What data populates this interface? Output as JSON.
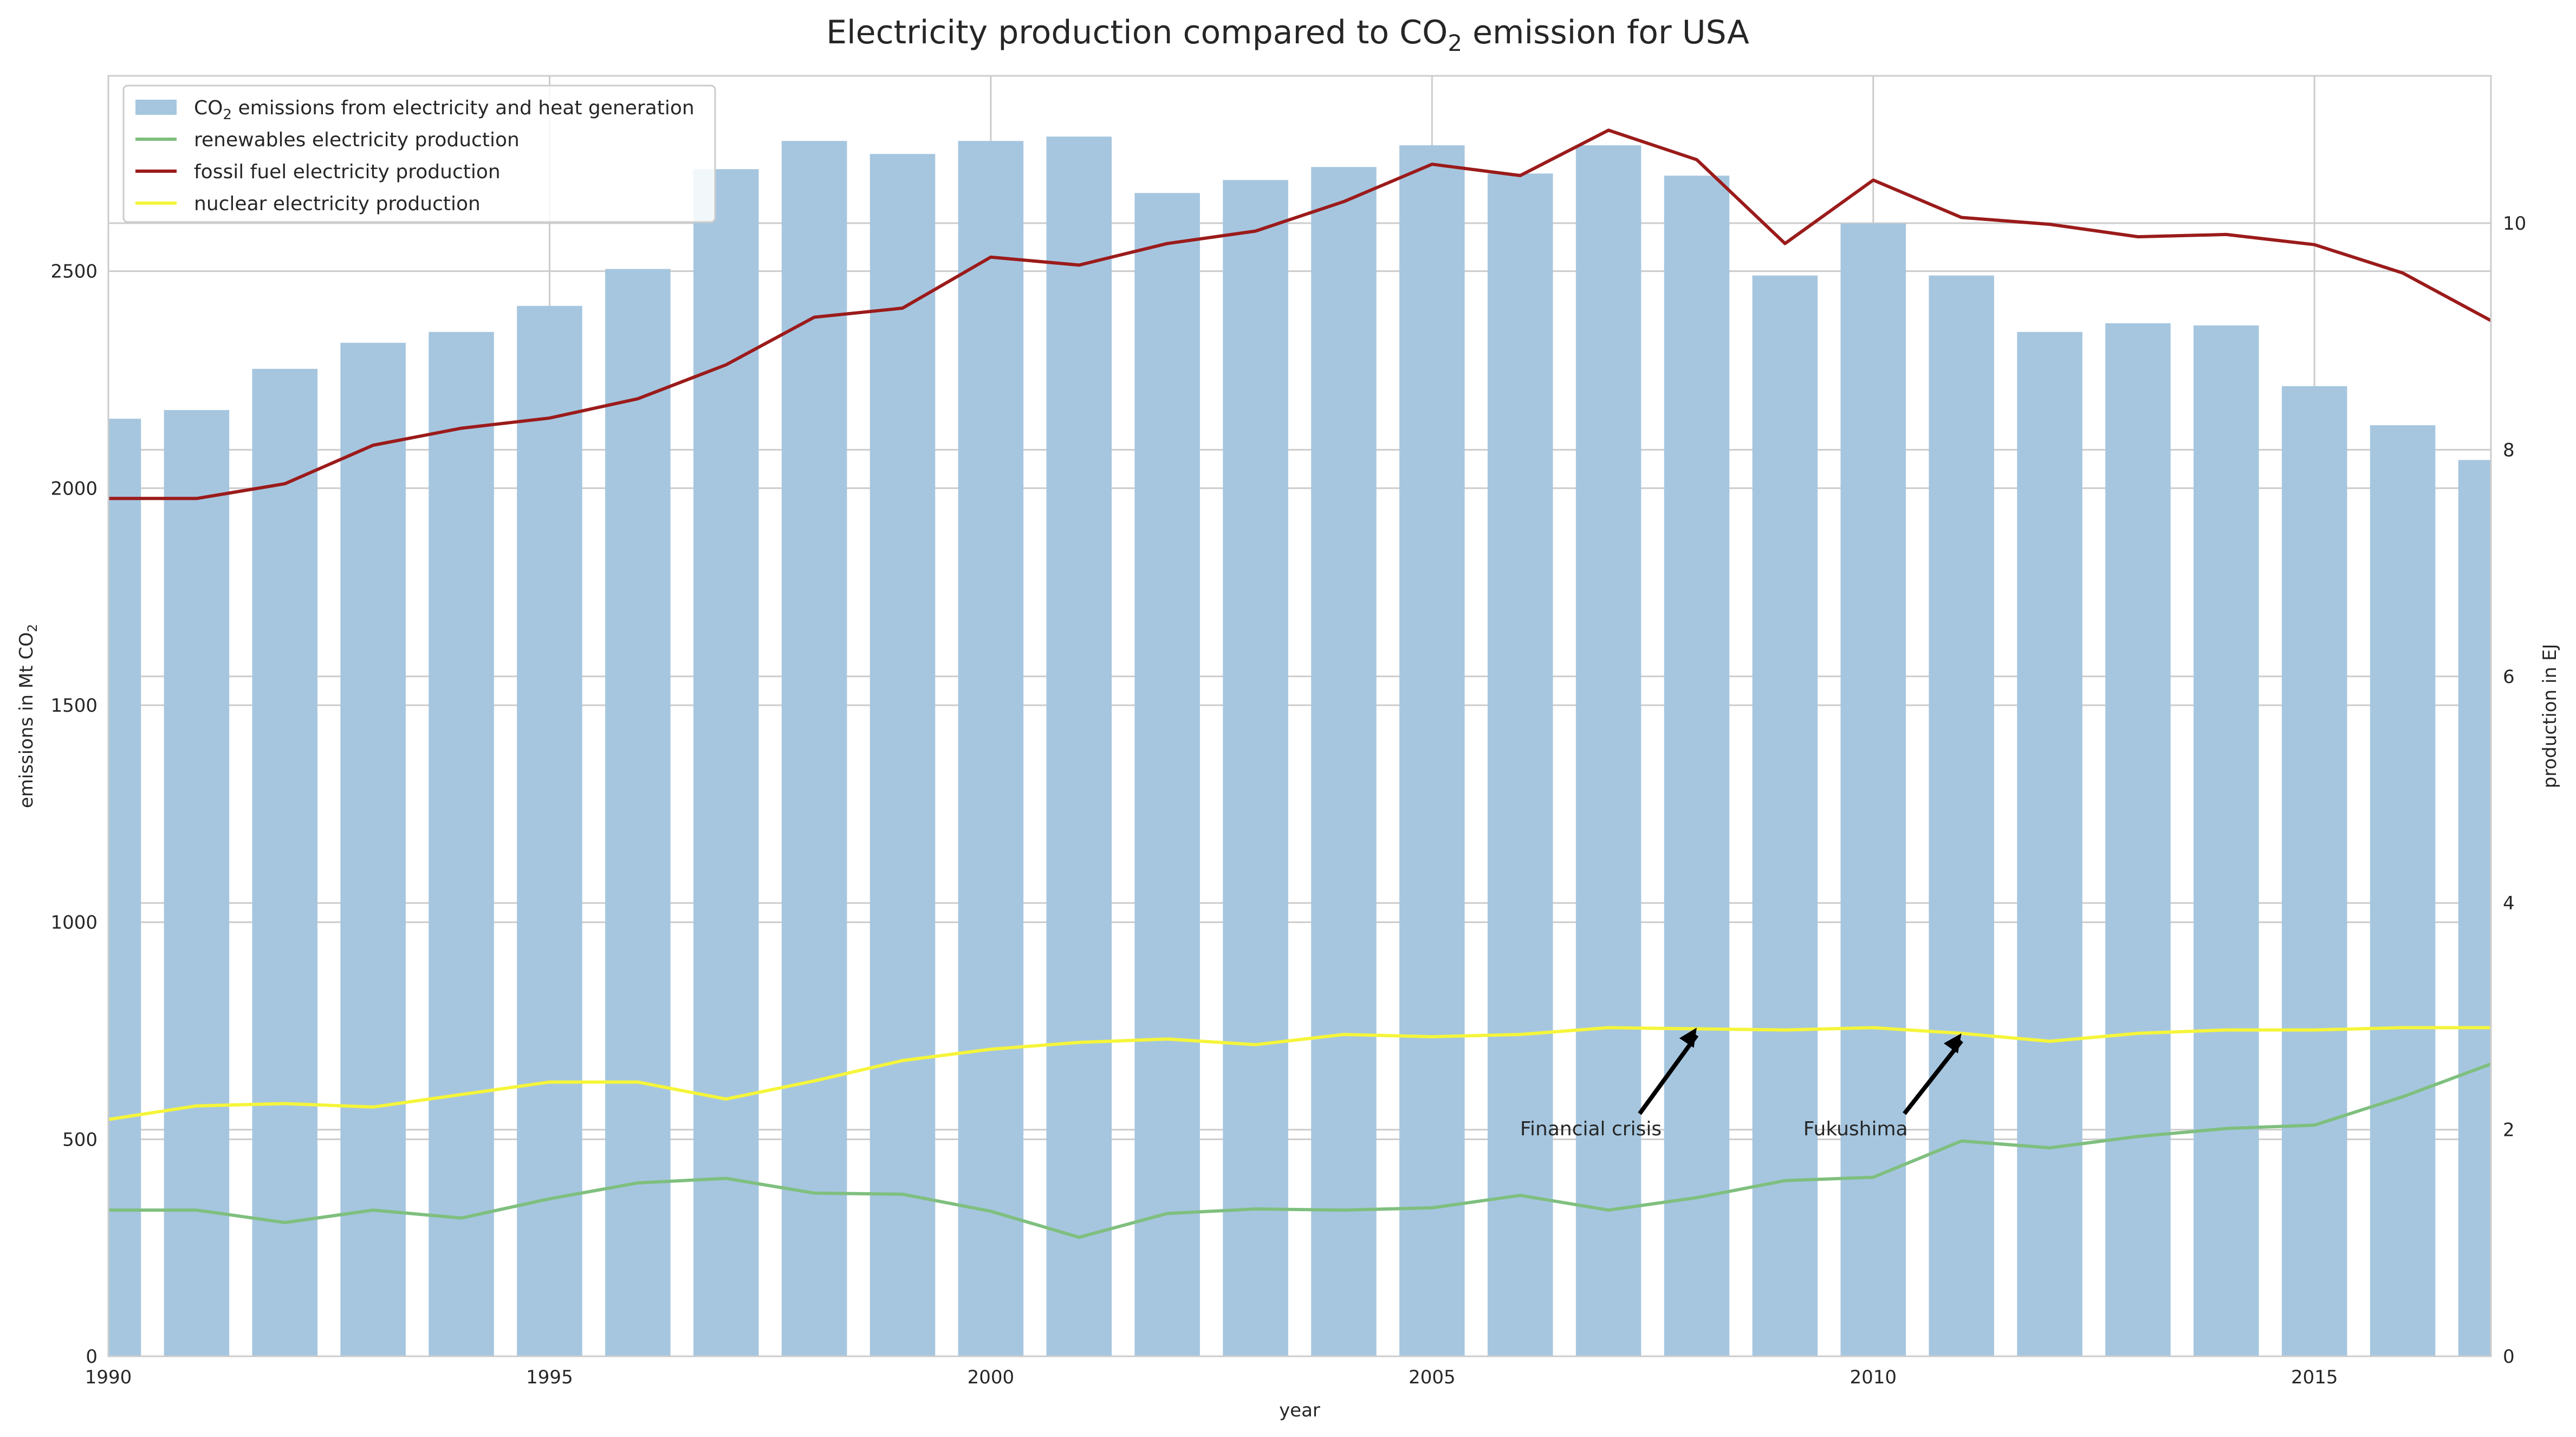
{
  "chart_data": {
    "type": "bar",
    "title": {
      "main": "Electricity production compared to CO",
      "subscript": "2",
      "suffix": " emission for USA"
    },
    "xlabel": "year",
    "ylabel_left": {
      "main": "emissions in Mt CO",
      "subscript": "2"
    },
    "ylabel_right": "production in EJ",
    "x": [
      1990,
      1991,
      1992,
      1993,
      1994,
      1995,
      1996,
      1997,
      1998,
      1999,
      2000,
      2001,
      2002,
      2003,
      2004,
      2005,
      2006,
      2007,
      2008,
      2009,
      2010,
      2011,
      2012,
      2013,
      2014,
      2015,
      2016,
      2017
    ],
    "xlim": [
      1990,
      2017
    ],
    "x_ticks": [
      "1990",
      "1995",
      "2000",
      "2005",
      "2010",
      "2015"
    ],
    "ylim_left": [
      0,
      2950
    ],
    "y_ticks_left": [
      "0",
      "500",
      "1000",
      "1500",
      "2000",
      "2500"
    ],
    "ylim_right": [
      0,
      11.3
    ],
    "y_ticks_right": [
      "0",
      "2",
      "4",
      "6",
      "8",
      "10"
    ],
    "bars": {
      "name": "CO2 emissions from electricity and heat generation",
      "axis": "left",
      "color": "#a6c6df",
      "values": [
        2160,
        2180,
        2275,
        2335,
        2360,
        2420,
        2505,
        2735,
        2800,
        2770,
        2800,
        2810,
        2680,
        2710,
        2740,
        2790,
        2725,
        2790,
        2720,
        2490,
        2610,
        2490,
        2360,
        2380,
        2375,
        2235,
        2145,
        2065
      ]
    },
    "series": [
      {
        "name": "renewables electricity production",
        "axis": "right",
        "color": "#7fbf7f",
        "values": [
          1.29,
          1.29,
          1.18,
          1.29,
          1.22,
          1.39,
          1.53,
          1.57,
          1.44,
          1.43,
          1.28,
          1.05,
          1.26,
          1.3,
          1.29,
          1.31,
          1.42,
          1.29,
          1.4,
          1.55,
          1.58,
          1.9,
          1.84,
          1.94,
          2.01,
          2.04,
          2.29,
          2.58
        ]
      },
      {
        "name": "fossil fuel electricity production",
        "axis": "right",
        "color": "#9b1b1b",
        "values": [
          7.57,
          7.57,
          7.7,
          8.04,
          8.19,
          8.28,
          8.45,
          8.75,
          9.17,
          9.25,
          9.7,
          9.63,
          9.82,
          9.93,
          10.19,
          10.52,
          10.42,
          10.82,
          10.56,
          9.82,
          10.38,
          10.05,
          9.99,
          9.88,
          9.9,
          9.81,
          9.56,
          9.14
        ]
      },
      {
        "name": "nuclear electricity production",
        "axis": "right",
        "color": "#f5f53a",
        "values": [
          2.09,
          2.21,
          2.23,
          2.2,
          2.31,
          2.42,
          2.42,
          2.27,
          2.43,
          2.61,
          2.71,
          2.77,
          2.8,
          2.75,
          2.84,
          2.82,
          2.84,
          2.9,
          2.89,
          2.88,
          2.9,
          2.85,
          2.78,
          2.85,
          2.88,
          2.88,
          2.9,
          2.9
        ]
      }
    ],
    "legend": {
      "position": "top-left",
      "items": [
        {
          "main": "CO",
          "subscript": "2",
          "suffix": " emissions from electricity and heat generation",
          "kind": "patch",
          "color": "#a6c6df"
        },
        {
          "main": "renewables electricity production",
          "subscript": "",
          "suffix": "",
          "kind": "line",
          "color": "#7fbf7f"
        },
        {
          "main": "fossil fuel electricity production",
          "subscript": "",
          "suffix": "",
          "kind": "line",
          "color": "#9b1b1b"
        },
        {
          "main": "nuclear electricity production",
          "subscript": "",
          "suffix": "",
          "kind": "line",
          "color": "#f5f53a"
        }
      ]
    },
    "annotations": [
      {
        "text": "Financial crisis",
        "x": 2008,
        "y_right": 2.9,
        "text_x": 2006.8,
        "text_y_right": 1.95
      },
      {
        "text": "Fukushima",
        "x": 2011,
        "y_right": 2.85,
        "text_x": 2009.8,
        "text_y_right": 1.95
      }
    ],
    "grid": true
  }
}
